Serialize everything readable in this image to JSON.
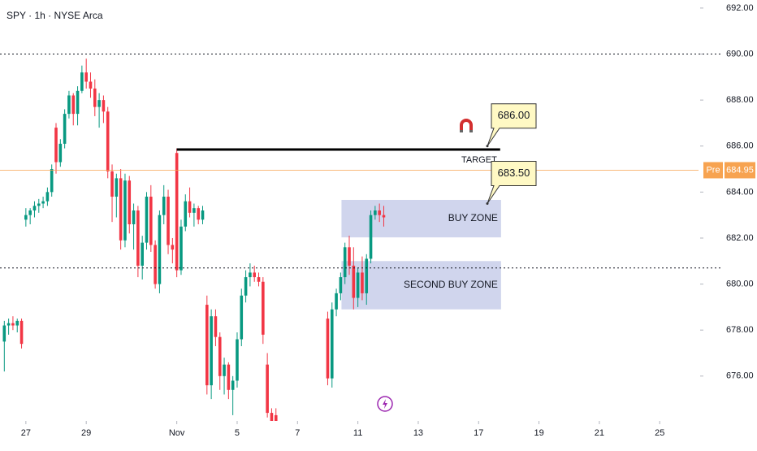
{
  "chart_data": {
    "type": "candlestick",
    "title": "SPY · 1h · NYSE Arca",
    "up_color": "#089981",
    "down_color": "#f23645",
    "x": [
      1,
      2,
      3,
      4,
      5,
      6,
      7,
      8,
      9,
      10,
      11,
      12,
      13,
      14,
      15,
      16,
      17,
      18,
      19,
      20,
      21,
      22,
      23,
      24,
      25,
      26,
      27,
      28,
      29,
      30,
      31,
      32,
      33,
      34,
      35,
      36,
      37,
      38,
      39,
      40,
      41,
      42,
      43,
      44,
      45,
      46,
      47,
      48,
      49,
      50,
      51,
      52,
      53,
      54,
      55,
      56,
      57,
      58,
      59,
      60,
      61,
      62,
      63,
      64,
      76,
      77,
      78,
      79,
      80,
      81,
      82,
      83,
      84,
      85,
      86,
      87,
      88,
      89
    ],
    "open": [
      677.5,
      678.2,
      678.3,
      678.2,
      678.4,
      682.8,
      683.0,
      683.2,
      683.4,
      683.5,
      683.6,
      684.0,
      686.8,
      685.3,
      686.1,
      687.4,
      688.2,
      687.4,
      688.4,
      689.2,
      688.8,
      688.5,
      687.7,
      688.0,
      687.5,
      684.9,
      683.8,
      684.6,
      681.9,
      684.5,
      682.6,
      683.2,
      680.8,
      681.8,
      683.8,
      681.7,
      680.0,
      683.0,
      683.8,
      681.7,
      685.7,
      680.6,
      682.5,
      683.6,
      683.1,
      683.3,
      682.8,
      679.1,
      675.6,
      678.6,
      677.7,
      676.0,
      676.5,
      675.4,
      675.8,
      677.6,
      679.5,
      680.3,
      680.5,
      680.3,
      680.1,
      676.5,
      674.4,
      674.3,
      678.5,
      675.9,
      678.9,
      679.6,
      680.3,
      681.6,
      680.8,
      679.4,
      680.5,
      679.6,
      681.1,
      683.0,
      683.2,
      683.0
    ],
    "high": [
      678.4,
      678.5,
      678.6,
      678.5,
      678.5,
      683.3,
      683.3,
      683.6,
      683.7,
      683.8,
      684.2,
      685.2,
      687.0,
      686.3,
      687.6,
      688.4,
      688.3,
      688.6,
      689.5,
      689.8,
      689.2,
      688.9,
      688.3,
      688.2,
      687.7,
      685.2,
      684.8,
      685.0,
      684.8,
      684.7,
      683.5,
      683.4,
      682.1,
      684.0,
      684.3,
      681.9,
      683.2,
      684.3,
      684.1,
      682.0,
      685.9,
      682.8,
      683.9,
      684.2,
      683.5,
      683.4,
      683.4,
      679.5,
      678.9,
      678.9,
      677.9,
      676.8,
      676.6,
      676.0,
      677.9,
      679.8,
      680.6,
      680.9,
      680.8,
      680.5,
      680.3,
      677.0,
      674.6,
      674.6,
      678.8,
      679.2,
      679.8,
      680.5,
      681.8,
      682.1,
      681.6,
      680.7,
      681.2,
      681.3,
      683.2,
      683.4,
      683.5,
      683.4
    ],
    "low": [
      676.2,
      677.8,
      678.0,
      677.9,
      677.2,
      682.5,
      682.6,
      682.9,
      683.1,
      683.3,
      683.4,
      683.8,
      684.8,
      685.1,
      685.9,
      687.2,
      686.9,
      686.9,
      688.3,
      688.5,
      688.1,
      687.3,
      686.8,
      687.0,
      684.6,
      682.7,
      682.9,
      681.5,
      681.6,
      682.2,
      681.5,
      680.3,
      680.2,
      681.5,
      681.4,
      679.8,
      679.6,
      682.6,
      681.3,
      680.9,
      680.3,
      680.4,
      682.3,
      682.9,
      682.5,
      682.6,
      682.6,
      675.2,
      675.0,
      677.3,
      675.4,
      675.2,
      675.0,
      674.3,
      675.5,
      677.3,
      679.2,
      679.9,
      680.1,
      679.9,
      677.4,
      674.2,
      673.9,
      673.8,
      675.6,
      675.5,
      678.6,
      679.3,
      680.0,
      680.4,
      678.9,
      679.0,
      679.3,
      679.1,
      680.9,
      682.8,
      682.7,
      682.5
    ],
    "close": [
      678.2,
      678.3,
      678.2,
      678.4,
      677.4,
      683.0,
      683.2,
      683.4,
      683.5,
      683.6,
      684.0,
      685.0,
      685.3,
      686.1,
      687.4,
      688.2,
      687.4,
      688.4,
      689.2,
      688.8,
      688.5,
      687.7,
      688.0,
      687.5,
      684.9,
      683.8,
      684.6,
      681.9,
      684.5,
      682.6,
      683.2,
      680.8,
      681.8,
      683.8,
      681.7,
      680.0,
      683.0,
      683.8,
      681.7,
      681.5,
      680.6,
      682.5,
      683.6,
      683.1,
      683.3,
      682.8,
      683.2,
      675.6,
      678.6,
      677.7,
      676.0,
      676.5,
      675.4,
      675.8,
      677.6,
      679.5,
      680.3,
      680.5,
      680.3,
      680.1,
      677.8,
      674.4,
      674.0,
      674.0,
      675.9,
      678.9,
      679.6,
      680.3,
      681.6,
      680.8,
      679.4,
      680.5,
      679.6,
      681.1,
      683.0,
      683.2,
      683.0,
      682.9
    ],
    "xlim": [
      0,
      162
    ],
    "xticks": [
      {
        "value": 6,
        "label": "27"
      },
      {
        "value": 20,
        "label": "29"
      },
      {
        "value": 41,
        "label": "Nov"
      },
      {
        "value": 55,
        "label": "5"
      },
      {
        "value": 69,
        "label": "7"
      },
      {
        "value": 83,
        "label": "11"
      },
      {
        "value": 97,
        "label": "13"
      },
      {
        "value": 111,
        "label": "17"
      },
      {
        "value": 125,
        "label": "19"
      },
      {
        "value": 139,
        "label": "21"
      },
      {
        "value": 153,
        "label": "25"
      }
    ],
    "ylim": [
      674.05,
      692.35
    ],
    "yticks": [
      {
        "value": 676,
        "label": "676.00"
      },
      {
        "value": 678,
        "label": "678.00"
      },
      {
        "value": 680,
        "label": "680.00"
      },
      {
        "value": 682,
        "label": "682.00"
      },
      {
        "value": 684,
        "label": "684.00"
      },
      {
        "value": 686,
        "label": "686.00"
      },
      {
        "value": 688,
        "label": "688.00"
      },
      {
        "value": 690,
        "label": "690.00"
      },
      {
        "value": 692,
        "label": "692.00"
      }
    ],
    "dotted_lines": [
      690.0,
      680.7
    ],
    "price_line": {
      "value": 684.95,
      "tag": "Pre",
      "color": "#f7a350"
    },
    "target": {
      "label": "TARGET",
      "value": 685.85,
      "x": [
        41,
        116
      ]
    },
    "zones": [
      {
        "label": "BUY ZONE",
        "from": 682.03,
        "to": 683.66,
        "x": [
          79.2,
          116.2
        ]
      },
      {
        "label": "SECOND BUY ZONE",
        "from": 678.9,
        "to": 681.0,
        "x": [
          79.2,
          116.2
        ]
      }
    ],
    "callouts": [
      {
        "value": 686,
        "label": "686.00"
      },
      {
        "value": 683.5,
        "label": "683.50"
      }
    ]
  }
}
